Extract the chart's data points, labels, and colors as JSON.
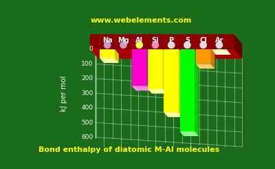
{
  "title": "Bond enthalpy of diatomic M-Al molecules",
  "ylabel": "kJ per mol",
  "watermark": "www.webelements.com",
  "categories": [
    "Na",
    "Mg",
    "Al",
    "Si",
    "P",
    "S",
    "Cl",
    "Ar"
  ],
  "values": [
    61,
    0,
    250,
    270,
    430,
    560,
    100,
    5
  ],
  "bar_colors": [
    "#ffff00",
    "#888888",
    "#ff00cc",
    "#ffff00",
    "#ffff00",
    "#00ff00",
    "#ff9900",
    "#ffff88"
  ],
  "bar_top_colors": [
    "#ffff99",
    "#aaaaaa",
    "#ff88dd",
    "#ffff99",
    "#ffff99",
    "#88ff88",
    "#ffcc66",
    "#ffffcc"
  ],
  "bar_side_colors": [
    "#cccc00",
    "#555555",
    "#cc0099",
    "#cccc00",
    "#cccc00",
    "#00cc00",
    "#cc7700",
    "#cccc44"
  ],
  "background_color": "#1a6b1a",
  "title_color": "#ffff00",
  "watermark_color": "#ffff00",
  "axis_color": "#ffffff",
  "label_color": "#ffffff",
  "yticks": [
    0,
    100,
    200,
    300,
    400,
    500,
    600
  ],
  "ymax": 600,
  "base_color": "#8b0000",
  "base_top_color": "#aa0000",
  "dot_colors": [
    "#cc99cc",
    "#cc99cc",
    "#ffff44",
    "#ff88bb",
    "#dddddd",
    "#dddddd",
    "#dddddd",
    "#dddddd"
  ]
}
